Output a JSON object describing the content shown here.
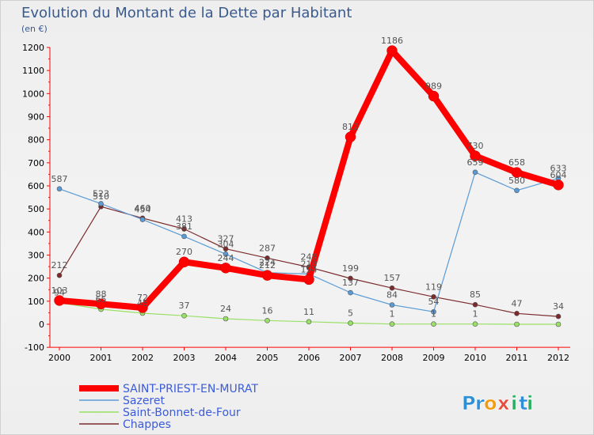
{
  "chart_data": {
    "type": "line",
    "title": "Evolution du Montant de la Dette par Habitant",
    "ylabel": "(en €)",
    "xlabel": "",
    "categories": [
      "2000",
      "2001",
      "2002",
      "2003",
      "2004",
      "2005",
      "2006",
      "2007",
      "2008",
      "2009",
      "2010",
      "2011",
      "2012"
    ],
    "ylim": [
      -100,
      1200
    ],
    "yticks": [
      -100,
      0,
      100,
      200,
      300,
      400,
      500,
      600,
      700,
      800,
      900,
      1000,
      1100,
      1200
    ],
    "grid": false,
    "legend_position": "bottom-left",
    "series": [
      {
        "name": "Chappes",
        "color": "#7b2b2b",
        "values": [
          212,
          510,
          460,
          413,
          327,
          287,
          248,
          199,
          157,
          119,
          85,
          47,
          34
        ]
      },
      {
        "name": "Sazeret",
        "color": "#5b9bd5",
        "values": [
          587,
          523,
          454,
          381,
          304,
          224,
          218,
          137,
          84,
          54,
          659,
          580,
          633
        ]
      },
      {
        "name": "Saint-Bonnet-de-Four",
        "color": "#99e066",
        "values": [
          94,
          65,
          48,
          37,
          24,
          16,
          11,
          5,
          1,
          1,
          1,
          0,
          0
        ]
      },
      {
        "name": "SAINT-PRIEST-EN-MURAT",
        "color": "#ff0000",
        "values": [
          103,
          88,
          72,
          270,
          244,
          212,
          194,
          812,
          1186,
          989,
          730,
          658,
          604
        ]
      }
    ],
    "labels": [
      [
        "212",
        "510",
        "460",
        "413",
        "327",
        "287",
        "248",
        "199",
        "157",
        "119",
        "85",
        "47",
        "34"
      ],
      [
        "587",
        "523",
        "454",
        "381",
        "304",
        "224",
        "218",
        "137",
        "84",
        "54",
        "659",
        "580",
        "633"
      ],
      [
        "94",
        "65",
        "48",
        "37",
        "24",
        "16",
        "11",
        "5",
        "1",
        "1",
        "1",
        "",
        ""
      ],
      [
        "103",
        "88",
        "72",
        "270",
        "244",
        "212",
        "194",
        "812",
        "1186",
        "989",
        "730",
        "658",
        "604"
      ]
    ]
  },
  "legend_order": [
    3,
    1,
    2,
    0
  ],
  "brand": {
    "text": "Proxiti",
    "letters": [
      "P",
      "r",
      "o",
      "x",
      "i",
      "t",
      "i"
    ],
    "colors": [
      "#2e8fd6",
      "#2e8fd6",
      "#f39c12",
      "#e74c3c",
      "#27ae60",
      "#2e8fd6",
      "#27ae60"
    ]
  }
}
